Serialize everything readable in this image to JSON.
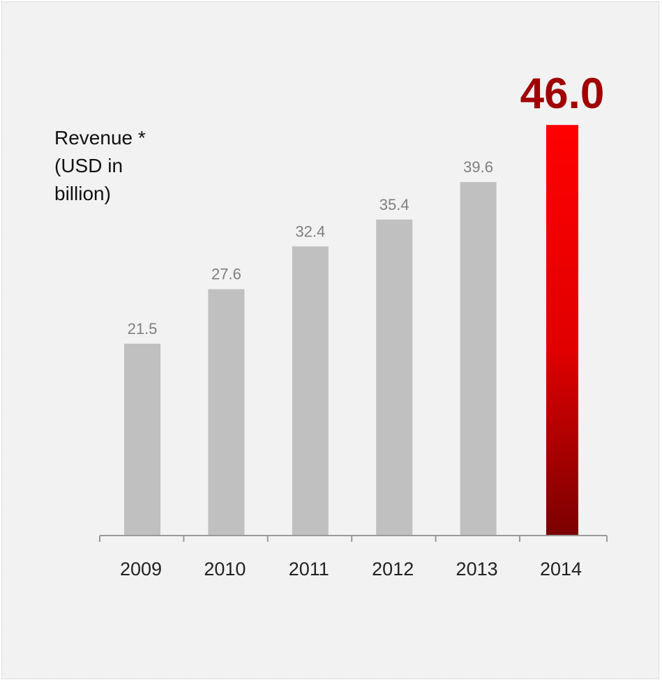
{
  "chart_data": {
    "type": "bar",
    "title": "",
    "ylabel": "Revenue  *\n(USD in\nbillion)",
    "xlabel": "",
    "categories": [
      "2009",
      "2010",
      "2011",
      "2012",
      "2013",
      "2014"
    ],
    "values": [
      21.5,
      27.6,
      32.4,
      35.4,
      39.6,
      46.0
    ],
    "value_labels": [
      "21.5",
      "27.6",
      "32.4",
      "35.4",
      "39.6",
      "46.0"
    ],
    "ylim": [
      0,
      50
    ],
    "grid": false,
    "legend": "none",
    "highlight_index": 5,
    "colors": {
      "bar": "#c0c0c0",
      "highlight_top": "#ff0000",
      "highlight_bottom": "#7a0000",
      "value_label": "#7f7f7f",
      "highlight_label": "#a00000",
      "axis": "#9a9a9a",
      "tick_label": "#222222"
    }
  }
}
